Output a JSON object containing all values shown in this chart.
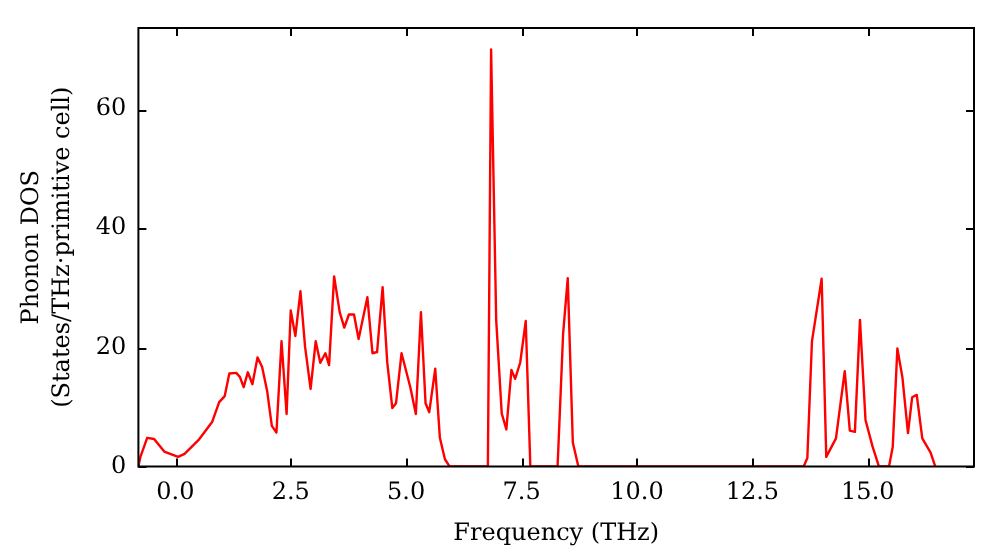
{
  "chart_data": {
    "type": "line",
    "xlabel": "Frequency (THz)",
    "ylabel": "Phonon DOS\n(States/THz·primitive cell)",
    "xlim": [
      -0.8,
      17.3
    ],
    "ylim": [
      0,
      73.6
    ],
    "xticks": [
      {
        "value": 0,
        "label": "0.0"
      },
      {
        "value": 2.5,
        "label": "2.5"
      },
      {
        "value": 5,
        "label": "5.0"
      },
      {
        "value": 7.5,
        "label": "7.5"
      },
      {
        "value": 10,
        "label": "10.0"
      },
      {
        "value": 12.5,
        "label": "12.5"
      },
      {
        "value": 15,
        "label": "15.0"
      }
    ],
    "yticks": [
      0,
      20,
      40,
      60
    ],
    "grid": false,
    "legend": false,
    "marker": "none",
    "line_style": "solid",
    "series": [
      {
        "color": "#ff0000",
        "x": [
          -0.8,
          -0.76,
          -0.61,
          -0.46,
          -0.24,
          0.06,
          0.2,
          0.5,
          0.8,
          0.95,
          1.07,
          1.17,
          1.32,
          1.4,
          1.48,
          1.57,
          1.67,
          1.78,
          1.88,
          1.99,
          2.09,
          2.19,
          2.3,
          2.41,
          2.5,
          2.6,
          2.71,
          2.81,
          2.93,
          3.04,
          3.14,
          3.25,
          3.33,
          3.44,
          3.56,
          3.66,
          3.76,
          3.87,
          3.97,
          4.16,
          4.27,
          4.37,
          4.49,
          4.59,
          4.7,
          4.78,
          4.9,
          5.09,
          5.21,
          5.32,
          5.42,
          5.5,
          5.63,
          5.73,
          5.84,
          5.94,
          6.77,
          6.84,
          6.95,
          7.07,
          7.17,
          7.28,
          7.36,
          7.47,
          7.59,
          7.69,
          8.28,
          8.4,
          8.5,
          8.61,
          8.73,
          13.61,
          13.69,
          13.79,
          14.0,
          14.1,
          14.31,
          14.5,
          14.61,
          14.72,
          14.83,
          14.95,
          15.1,
          15.24,
          15.46,
          15.54,
          15.64,
          15.75,
          15.87,
          15.96,
          16.06,
          16.18,
          16.36,
          16.46
        ],
        "values": [
          0,
          1.5,
          4.8,
          4.6,
          2.5,
          1.6,
          2.1,
          4.4,
          7.5,
          10.8,
          11.8,
          15.6,
          15.7,
          15,
          13.3,
          15.8,
          13.8,
          18.3,
          16.7,
          12.6,
          6.8,
          5.7,
          21,
          8.8,
          26.2,
          21.9,
          29.4,
          20.1,
          13,
          21,
          17.4,
          19,
          17,
          31.9,
          25.9,
          23.3,
          25.5,
          25.5,
          21.4,
          28.4,
          19,
          19.2,
          30.1,
          17.5,
          9.8,
          10.6,
          19,
          13.3,
          8.8,
          25.9,
          10.6,
          9.1,
          16.4,
          4.8,
          1.2,
          0,
          0,
          70,
          24.6,
          8.9,
          6.2,
          16.2,
          14.7,
          17.4,
          24.4,
          0,
          0,
          22.3,
          31.6,
          4,
          0,
          0,
          1.4,
          21,
          31.5,
          1.6,
          4.7,
          16,
          6,
          5.8,
          24.6,
          7.8,
          3.4,
          0,
          0,
          3.3,
          19.8,
          14.9,
          5.6,
          11.6,
          12,
          4.7,
          2.3,
          0
        ]
      }
    ]
  }
}
